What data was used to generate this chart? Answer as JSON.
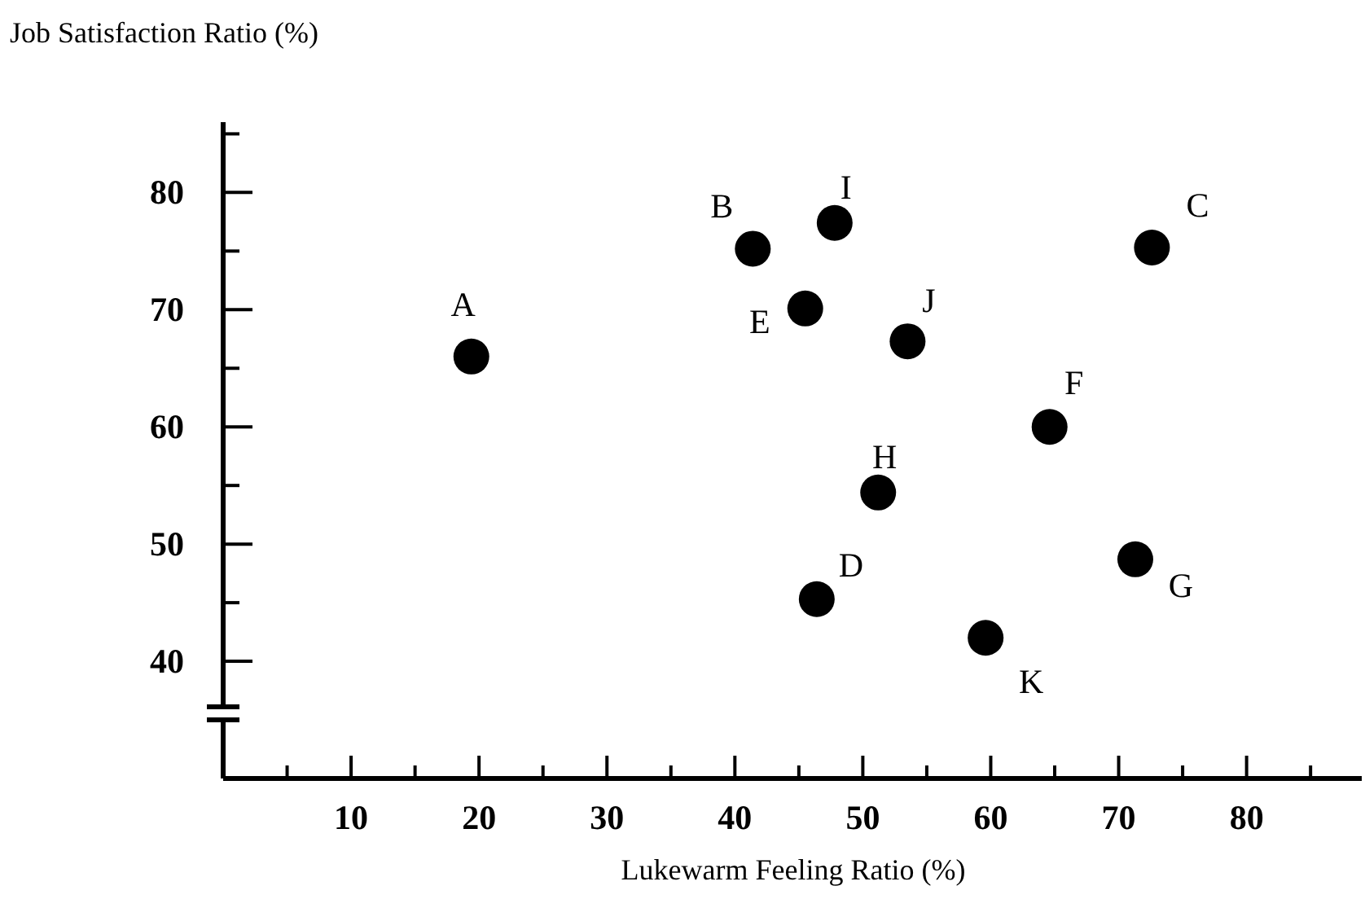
{
  "chart_data": {
    "type": "scatter",
    "xlabel": "Lukewarm Feeling Ratio (%)",
    "ylabel": "Job Satisfaction Ratio (%)",
    "x": [
      19.4,
      41.4,
      47.8,
      72.6,
      45.5,
      53.5,
      64.6,
      51.2,
      46.4,
      71.3,
      59.6
    ],
    "values": [
      66,
      75.2,
      77.4,
      75.3,
      70.1,
      67.3,
      60,
      54.4,
      45.3,
      48.7,
      42
    ],
    "color": "#000000",
    "marker": "circle",
    "grid": false,
    "xlim": [
      0,
      89
    ],
    "ylim": [
      30,
      86
    ],
    "xticks": [
      {
        "value": 5,
        "label": null
      },
      10,
      {
        "value": 15,
        "label": null
      },
      20,
      {
        "value": 25,
        "label": null
      },
      30,
      {
        "value": 35,
        "label": null
      },
      40,
      {
        "value": 45,
        "label": null
      },
      50,
      {
        "value": 55,
        "label": null
      },
      60,
      {
        "value": 65,
        "label": null
      },
      70,
      {
        "value": 75,
        "label": null
      },
      80,
      {
        "value": 85,
        "label": null
      }
    ],
    "yticks": [
      40,
      {
        "value": 45,
        "label": null
      },
      50,
      {
        "value": 55,
        "label": null
      },
      60,
      {
        "value": 65,
        "label": null
      },
      70,
      {
        "value": 75,
        "label": null
      },
      80,
      {
        "value": 85,
        "label": null
      }
    ],
    "annotations": [
      {
        "text": "A",
        "x": 19.4,
        "y": 66
      },
      {
        "text": "B",
        "x": 41.4,
        "y": 75.2
      },
      {
        "text": "I",
        "x": 47.8,
        "y": 77.4
      },
      {
        "text": "C",
        "x": 72.6,
        "y": 75.3
      },
      {
        "text": "E",
        "x": 45.5,
        "y": 70.1
      },
      {
        "text": "J",
        "x": 53.5,
        "y": 67.3
      },
      {
        "text": "F",
        "x": 64.6,
        "y": 60
      },
      {
        "text": "H",
        "x": 51.2,
        "y": 54.4
      },
      {
        "text": "D",
        "x": 46.4,
        "y": 45.3
      },
      {
        "text": "G",
        "x": 71.3,
        "y": 48.7
      },
      {
        "text": "K",
        "x": 59.6,
        "y": 42
      }
    ]
  }
}
